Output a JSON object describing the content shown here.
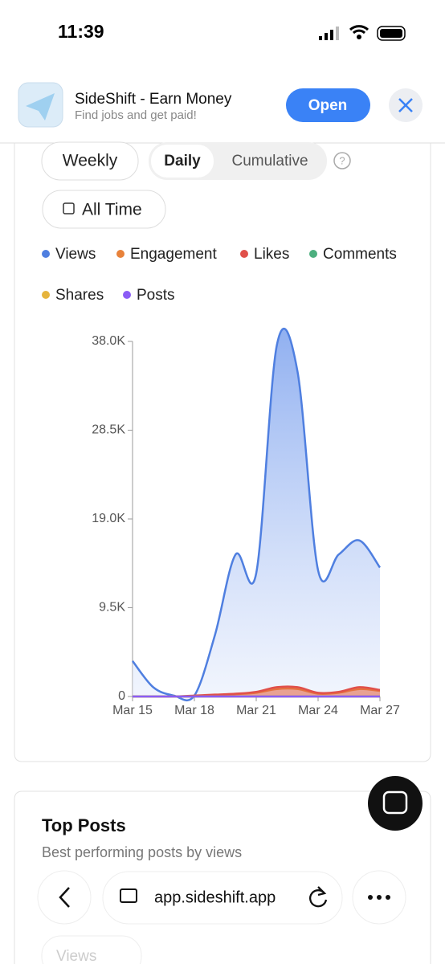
{
  "status": {
    "time": "11:39"
  },
  "banner": {
    "title": "SideShift - Earn Money",
    "subtitle": "Find jobs and get paid!",
    "button": "Open"
  },
  "tabs": [
    "Weekly",
    "Daily",
    "Cumulative"
  ],
  "range": "All Time",
  "chart_data": {
    "type": "line",
    "categories": [
      "Mar 15",
      null,
      null,
      "Mar 18",
      null,
      null,
      "Mar 21",
      null,
      null,
      "Mar 24",
      null,
      null,
      "Mar 27"
    ],
    "ylim": [
      0,
      38000
    ],
    "yticks": [
      0,
      {
        "value": 9500,
        "label": "9.5K"
      },
      {
        "value": 19000,
        "label": "19.0K"
      },
      {
        "value": 28500,
        "label": "28.5K"
      },
      {
        "value": 38000,
        "label": "38.0K"
      }
    ],
    "series": [
      {
        "name": "Views",
        "color": "#4f7fe0",
        "values": [
          3800,
          1000,
          100,
          100,
          6600,
          15200,
          13200,
          37600,
          34800,
          13500,
          15200,
          16700,
          13800
        ]
      },
      {
        "name": "Engagement",
        "color": "#e8823a",
        "values": [
          0,
          0,
          0,
          0,
          150,
          250,
          400,
          800,
          800,
          300,
          400,
          800,
          600
        ]
      },
      {
        "name": "Likes",
        "color": "#e0504a",
        "values": [
          0,
          0,
          0,
          100,
          200,
          300,
          500,
          1000,
          1000,
          400,
          500,
          1000,
          700
        ]
      },
      {
        "name": "Comments",
        "color": "#4caf7f",
        "values": [
          0,
          0,
          0,
          0,
          0,
          0,
          0,
          0,
          0,
          0,
          0,
          0,
          0
        ]
      },
      {
        "name": "Shares",
        "color": "#e6b43c",
        "values": [
          0,
          0,
          0,
          0,
          0,
          0,
          0,
          0,
          0,
          0,
          0,
          0,
          0
        ]
      },
      {
        "name": "Posts",
        "color": "#8b5cf6",
        "values": [
          0,
          0,
          0,
          0,
          0,
          0,
          0,
          0,
          0,
          0,
          0,
          0,
          0
        ]
      }
    ]
  },
  "top_posts": {
    "title": "Top Posts",
    "subtitle": "Best performing posts by views",
    "filter": "Views"
  },
  "browser": {
    "url": "app.sideshift.app"
  }
}
